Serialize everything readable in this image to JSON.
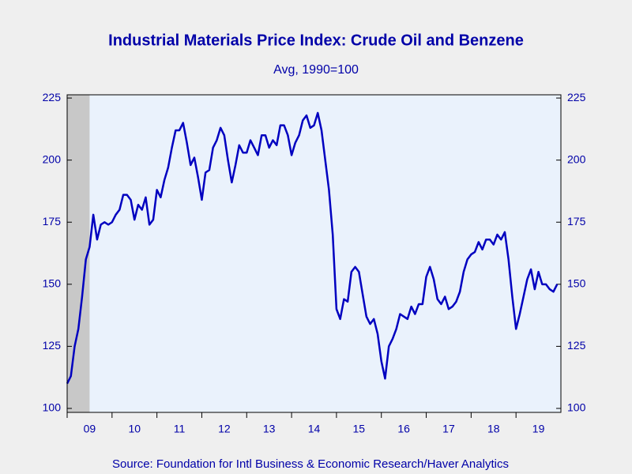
{
  "chart_data": {
    "type": "line",
    "title": "Industrial Materials Price Index: Crude Oil and Benzene",
    "subtitle": "Avg, 1990=100",
    "source": "Source:  Foundation for Intl Business & Economic Research/Haver Analytics",
    "x": [
      2009.0,
      2009.083,
      2009.167,
      2009.25,
      2009.333,
      2009.417,
      2009.5,
      2009.583,
      2009.667,
      2009.75,
      2009.833,
      2009.917,
      2010.0,
      2010.083,
      2010.167,
      2010.25,
      2010.333,
      2010.417,
      2010.5,
      2010.583,
      2010.667,
      2010.75,
      2010.833,
      2010.917,
      2011.0,
      2011.083,
      2011.167,
      2011.25,
      2011.333,
      2011.417,
      2011.5,
      2011.583,
      2011.667,
      2011.75,
      2011.833,
      2011.917,
      2012.0,
      2012.083,
      2012.167,
      2012.25,
      2012.333,
      2012.417,
      2012.5,
      2012.583,
      2012.667,
      2012.75,
      2012.833,
      2012.917,
      2013.0,
      2013.083,
      2013.167,
      2013.25,
      2013.333,
      2013.417,
      2013.5,
      2013.583,
      2013.667,
      2013.75,
      2013.833,
      2013.917,
      2014.0,
      2014.083,
      2014.167,
      2014.25,
      2014.333,
      2014.417,
      2014.5,
      2014.583,
      2014.667,
      2014.75,
      2014.833,
      2014.917,
      2015.0,
      2015.083,
      2015.167,
      2015.25,
      2015.333,
      2015.417,
      2015.5,
      2015.583,
      2015.667,
      2015.75,
      2015.833,
      2015.917,
      2016.0,
      2016.083,
      2016.167,
      2016.25,
      2016.333,
      2016.417,
      2016.5,
      2016.583,
      2016.667,
      2016.75,
      2016.833,
      2016.917,
      2017.0,
      2017.083,
      2017.167,
      2017.25,
      2017.333,
      2017.417,
      2017.5,
      2017.583,
      2017.667,
      2017.75,
      2017.833,
      2017.917,
      2018.0,
      2018.083,
      2018.167,
      2018.25,
      2018.333,
      2018.417,
      2018.5,
      2018.583,
      2018.667,
      2018.75,
      2018.833,
      2018.917,
      2019.0,
      2019.083,
      2019.167,
      2019.25,
      2019.333,
      2019.417,
      2019.5,
      2019.583,
      2019.667,
      2019.75,
      2019.833,
      2019.917
    ],
    "series": [
      {
        "color": "#0000c0",
        "values": [
          110,
          113,
          125,
          132,
          145,
          160,
          165,
          178,
          168,
          174,
          175,
          174,
          175,
          178,
          180,
          186,
          186,
          184,
          176,
          182,
          180,
          185,
          174,
          176,
          188,
          185,
          192,
          197,
          205,
          212,
          212,
          215,
          207,
          198,
          201,
          193,
          184,
          195,
          196,
          205,
          208,
          213,
          210,
          200,
          191,
          198,
          206,
          203,
          203,
          208,
          205,
          202,
          210,
          210,
          205,
          208,
          206,
          214,
          214,
          210,
          202,
          207,
          210,
          216,
          218,
          213,
          214,
          219,
          212,
          200,
          188,
          170,
          140,
          136,
          144,
          143,
          155,
          157,
          155,
          146,
          137,
          134,
          136,
          130,
          119,
          112,
          125,
          128,
          132,
          138,
          137,
          136,
          141,
          138,
          142,
          142,
          153,
          157,
          152,
          144,
          142,
          145,
          140,
          141,
          143,
          147,
          155,
          160,
          162,
          163,
          167,
          164,
          168,
          168,
          166,
          170,
          168,
          171,
          160,
          145,
          132,
          138,
          145,
          152,
          156,
          148,
          155,
          150,
          150,
          148,
          147,
          150
        ]
      }
    ],
    "shading": [
      2009,
      2009.5
    ],
    "xlim": [
      2009,
      2020
    ],
    "xticks": [
      {
        "value": 2009,
        "label": "09"
      },
      {
        "value": 2010,
        "label": "10"
      },
      {
        "value": 2011,
        "label": "11"
      },
      {
        "value": 2012,
        "label": "12"
      },
      {
        "value": 2013,
        "label": "13"
      },
      {
        "value": 2014,
        "label": "14"
      },
      {
        "value": 2015,
        "label": "15"
      },
      {
        "value": 2016,
        "label": "16"
      },
      {
        "value": 2017,
        "label": "17"
      },
      {
        "value": 2018,
        "label": "18"
      },
      {
        "value": 2019,
        "label": "19"
      }
    ],
    "ylim": [
      98.4,
      226.3
    ],
    "yticks": [
      100,
      125,
      150,
      175,
      200,
      225
    ],
    "y2lim": [
      98.4,
      226.3
    ],
    "y2ticks": [
      100,
      125,
      150,
      175,
      200,
      225
    ],
    "plot_background": "#eaf2fc",
    "shading_color": "#c8c8c8"
  }
}
